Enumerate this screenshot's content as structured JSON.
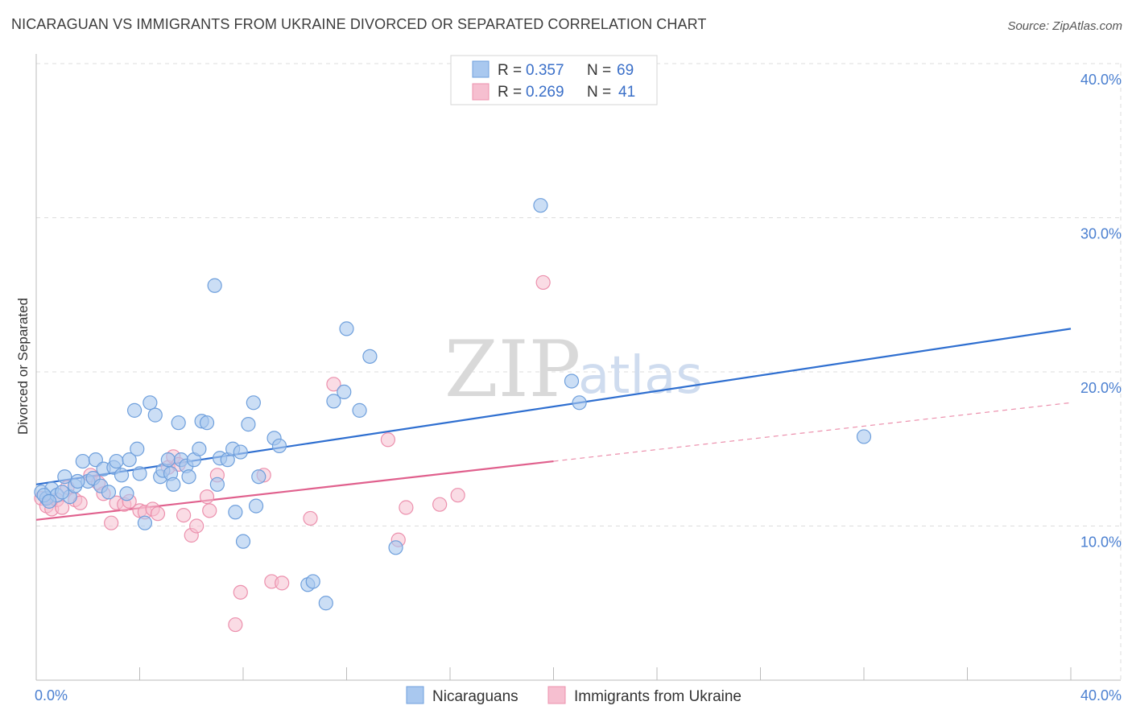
{
  "title": "NICARAGUAN VS IMMIGRANTS FROM UKRAINE DIVORCED OR SEPARATED CORRELATION CHART",
  "source": "Source: ZipAtlas.com",
  "watermark": {
    "zip": "ZIP",
    "atlas": "atlas"
  },
  "colors": {
    "blue_fill": "#a9c8ef",
    "blue_stroke": "#6e9fdc",
    "blue_line": "#2f6fd0",
    "pink_fill": "#f6bfd0",
    "pink_stroke": "#ec90ad",
    "pink_line": "#e0608d",
    "grid": "#dddddd",
    "axis_text": "#4a7fd0"
  },
  "legend": {
    "rows": [
      {
        "r_label": "R =",
        "r_value": "0.357",
        "n_label": "N =",
        "n_value": "69"
      },
      {
        "r_label": "R =",
        "r_value": "0.269",
        "n_label": "N =",
        "n_value": "41"
      }
    ]
  },
  "bottom_legend": [
    "Nicaraguans",
    "Immigrants from Ukraine"
  ],
  "chart_data": {
    "type": "scatter",
    "title": "NICARAGUAN VS IMMIGRANTS FROM UKRAINE DIVORCED OR SEPARATED CORRELATION CHART",
    "xlabel": "",
    "ylabel": "Divorced or Separated",
    "xlim": [
      0,
      40
    ],
    "ylim": [
      0,
      40
    ],
    "x_tick_labels": [
      "0.0%",
      "40.0%"
    ],
    "y_ticks": [
      10,
      20,
      30,
      40
    ],
    "y_tick_labels": [
      "10.0%",
      "20.0%",
      "30.0%",
      "40.0%"
    ],
    "grid": true,
    "series": [
      {
        "name": "Nicaraguans",
        "r": 0.357,
        "n": 69,
        "trend": {
          "x": [
            0,
            40
          ],
          "y": [
            12.7,
            22.8
          ],
          "style": "solid"
        },
        "points": [
          [
            0.2,
            12.2
          ],
          [
            0.4,
            11.8
          ],
          [
            0.6,
            12.4
          ],
          [
            0.8,
            12.0
          ],
          [
            1.1,
            13.2
          ],
          [
            1.3,
            11.9
          ],
          [
            1.5,
            12.6
          ],
          [
            1.8,
            14.2
          ],
          [
            2.0,
            12.9
          ],
          [
            2.2,
            13.1
          ],
          [
            2.3,
            14.3
          ],
          [
            2.5,
            12.6
          ],
          [
            2.6,
            13.7
          ],
          [
            2.8,
            12.2
          ],
          [
            3.0,
            13.8
          ],
          [
            3.1,
            14.2
          ],
          [
            3.3,
            13.3
          ],
          [
            3.5,
            12.1
          ],
          [
            3.6,
            14.3
          ],
          [
            3.8,
            17.5
          ],
          [
            3.9,
            15.0
          ],
          [
            4.0,
            13.4
          ],
          [
            4.2,
            10.2
          ],
          [
            4.4,
            18.0
          ],
          [
            4.6,
            17.2
          ],
          [
            4.8,
            13.2
          ],
          [
            4.9,
            13.6
          ],
          [
            5.1,
            14.3
          ],
          [
            5.2,
            13.4
          ],
          [
            5.3,
            12.7
          ],
          [
            5.5,
            16.7
          ],
          [
            5.6,
            14.3
          ],
          [
            5.8,
            13.9
          ],
          [
            5.9,
            13.2
          ],
          [
            6.1,
            14.3
          ],
          [
            6.3,
            15.0
          ],
          [
            6.4,
            16.8
          ],
          [
            6.6,
            16.7
          ],
          [
            6.9,
            25.6
          ],
          [
            7.0,
            12.7
          ],
          [
            7.1,
            14.4
          ],
          [
            7.4,
            14.3
          ],
          [
            7.6,
            15.0
          ],
          [
            7.7,
            10.9
          ],
          [
            7.9,
            14.8
          ],
          [
            8.0,
            9.0
          ],
          [
            8.2,
            16.6
          ],
          [
            8.4,
            18.0
          ],
          [
            8.5,
            11.3
          ],
          [
            8.6,
            13.2
          ],
          [
            9.2,
            15.7
          ],
          [
            9.4,
            15.2
          ],
          [
            10.5,
            6.2
          ],
          [
            10.7,
            6.4
          ],
          [
            11.2,
            5.0
          ],
          [
            11.5,
            18.1
          ],
          [
            11.9,
            18.7
          ],
          [
            12.0,
            22.8
          ],
          [
            12.5,
            17.5
          ],
          [
            12.9,
            21.0
          ],
          [
            13.9,
            8.6
          ],
          [
            19.5,
            30.8
          ],
          [
            20.7,
            19.4
          ],
          [
            21.0,
            18.0
          ],
          [
            32.0,
            15.8
          ],
          [
            0.3,
            12.0
          ],
          [
            0.5,
            11.6
          ],
          [
            1.0,
            12.2
          ],
          [
            1.6,
            12.9
          ]
        ]
      },
      {
        "name": "Immigrants from Ukraine",
        "r": 0.269,
        "n": 41,
        "trend": {
          "x": [
            0,
            20
          ],
          "y": [
            10.4,
            14.2
          ],
          "style": "solid",
          "extension": {
            "x": [
              20,
              40
            ],
            "y": [
              14.2,
              18.0
            ],
            "style": "dashed"
          }
        },
        "points": [
          [
            0.2,
            11.8
          ],
          [
            0.4,
            11.3
          ],
          [
            0.6,
            11.1
          ],
          [
            0.8,
            11.7
          ],
          [
            1.0,
            11.2
          ],
          [
            1.2,
            12.5
          ],
          [
            1.5,
            11.7
          ],
          [
            1.7,
            11.5
          ],
          [
            2.1,
            13.3
          ],
          [
            2.4,
            12.8
          ],
          [
            2.6,
            12.1
          ],
          [
            2.9,
            10.2
          ],
          [
            3.1,
            11.5
          ],
          [
            3.4,
            11.4
          ],
          [
            3.6,
            11.6
          ],
          [
            4.0,
            11.0
          ],
          [
            4.2,
            10.9
          ],
          [
            4.5,
            11.1
          ],
          [
            4.7,
            10.8
          ],
          [
            5.1,
            13.8
          ],
          [
            5.3,
            14.5
          ],
          [
            5.5,
            14.0
          ],
          [
            5.7,
            10.7
          ],
          [
            6.0,
            9.4
          ],
          [
            6.2,
            10.0
          ],
          [
            6.6,
            11.9
          ],
          [
            6.7,
            11.0
          ],
          [
            7.0,
            13.3
          ],
          [
            7.7,
            3.6
          ],
          [
            7.9,
            5.7
          ],
          [
            8.8,
            13.3
          ],
          [
            9.1,
            6.4
          ],
          [
            9.5,
            6.3
          ],
          [
            10.6,
            10.5
          ],
          [
            11.5,
            19.2
          ],
          [
            13.6,
            15.6
          ],
          [
            14.0,
            9.1
          ],
          [
            14.3,
            11.2
          ],
          [
            15.6,
            11.4
          ],
          [
            16.3,
            12.0
          ],
          [
            19.6,
            25.8
          ]
        ]
      }
    ]
  }
}
